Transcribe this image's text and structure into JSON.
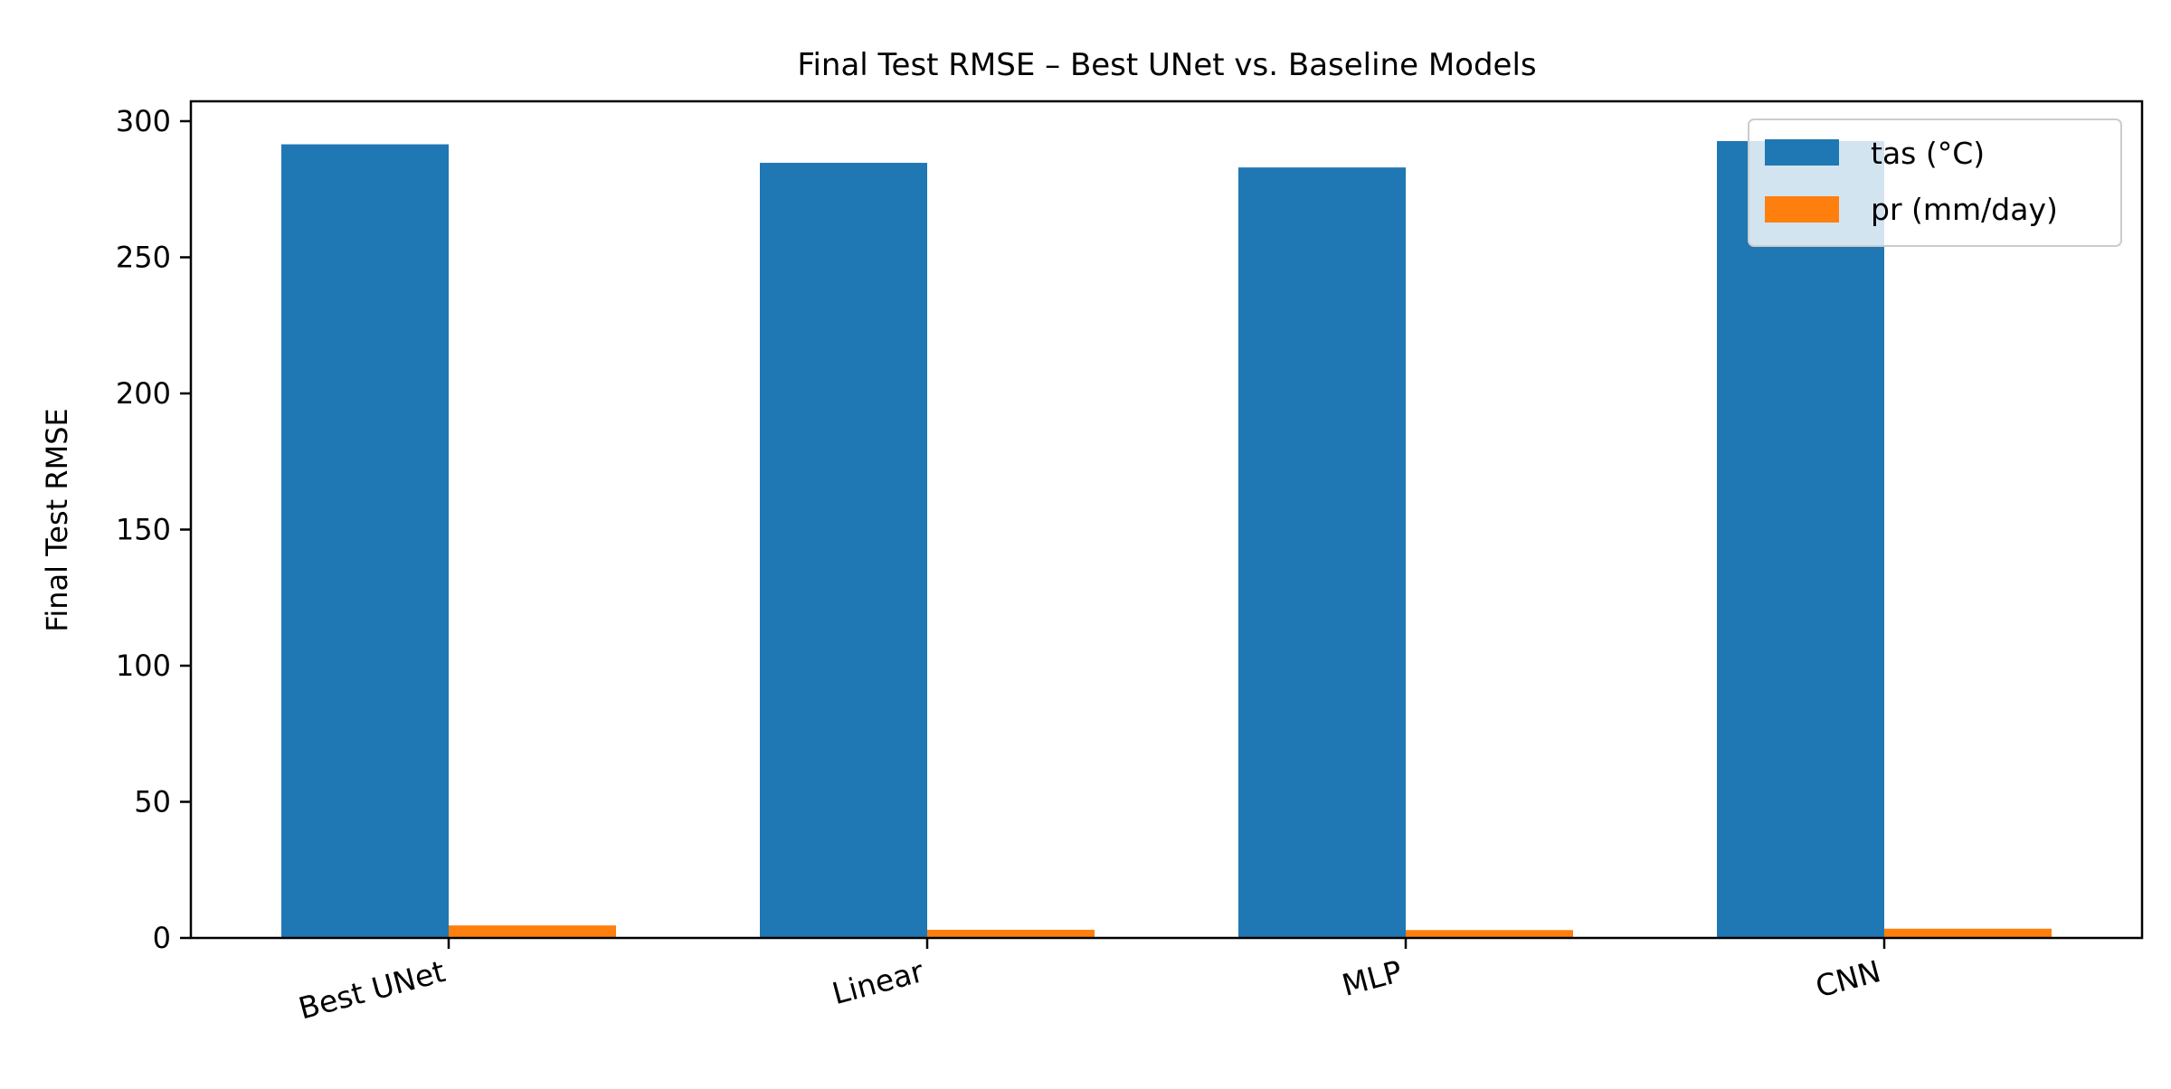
{
  "chart_data": {
    "type": "bar",
    "title": "Final Test RMSE – Best UNet vs. Baseline Models",
    "xlabel": "",
    "ylabel": "Final Test RMSE",
    "categories": [
      "Best UNet",
      "Linear",
      "MLP",
      "CNN"
    ],
    "series": [
      {
        "name": "tas (°C)",
        "color": "#1f77b4",
        "values": [
          291.5,
          284.7,
          283.0,
          292.7
        ]
      },
      {
        "name": "pr (mm/day)",
        "color": "#ff7f0e",
        "values": [
          4.6,
          3.0,
          2.9,
          3.4
        ]
      }
    ],
    "ylim": [
      0,
      307.3
    ],
    "yticks": [
      0,
      50,
      100,
      150,
      200,
      250,
      300
    ],
    "grid": false,
    "legend_position": "top-right"
  }
}
